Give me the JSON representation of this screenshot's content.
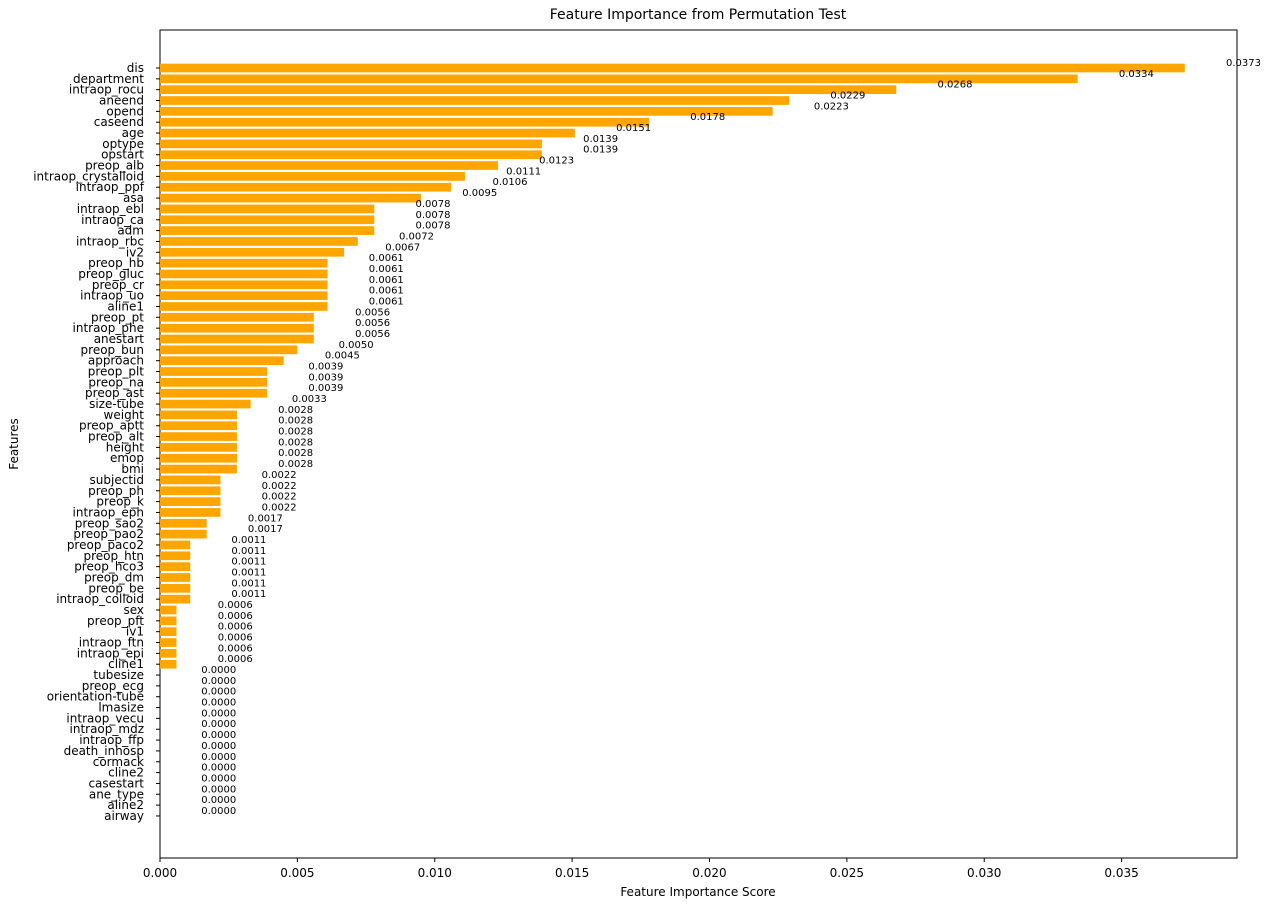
{
  "chart_data": {
    "type": "barh",
    "title": "Feature Importance from Permutation Test",
    "x_label": "Feature Importance Score",
    "y_label": "Features",
    "color": "#ffa500",
    "categories": [
      "dis",
      "department",
      "intraop_rocu",
      "aneend",
      "opend",
      "caseend",
      "age",
      "optype",
      "opstart",
      "preop_alb",
      "intraop_crystalloid",
      "intraop_ppf",
      "asa",
      "intraop_ebl",
      "intraop_ca",
      "adm",
      "intraop_rbc",
      "iv2",
      "preop_hb",
      "preop_gluc",
      "preop_cr",
      "intraop_uo",
      "aline1",
      "preop_pt",
      "intraop_phe",
      "anestart",
      "preop_bun",
      "approach",
      "preop_plt",
      "preop_na",
      "preop_ast",
      "size-tube",
      "weight",
      "preop_aptt",
      "preop_alt",
      "height",
      "emop",
      "bmi",
      "subjectid",
      "preop_ph",
      "preop_k",
      "intraop_eph",
      "preop_sao2",
      "preop_pao2",
      "preop_paco2",
      "preop_htn",
      "preop_hco3",
      "preop_dm",
      "preop_be",
      "intraop_colloid",
      "sex",
      "preop_pft",
      "iv1",
      "intraop_ftn",
      "intraop_epi",
      "cline1",
      "tubesize",
      "preop_ecg",
      "orientation-tube",
      "lmasize",
      "intraop_vecu",
      "intraop_mdz",
      "intraop_ffp",
      "death_inhosp",
      "cormack",
      "cline2",
      "casestart",
      "ane_type",
      "aline2",
      "airway"
    ],
    "values": [
      0.0373,
      0.0334,
      0.0268,
      0.0229,
      0.0223,
      0.0178,
      0.0151,
      0.0139,
      0.0139,
      0.0123,
      0.0111,
      0.0106,
      0.0095,
      0.0078,
      0.0078,
      0.0078,
      0.0072,
      0.0067,
      0.0061,
      0.0061,
      0.0061,
      0.0061,
      0.0061,
      0.0056,
      0.0056,
      0.0056,
      0.005,
      0.0045,
      0.0039,
      0.0039,
      0.0039,
      0.0033,
      0.0028,
      0.0028,
      0.0028,
      0.0028,
      0.0028,
      0.0028,
      0.0022,
      0.0022,
      0.0022,
      0.0022,
      0.0017,
      0.0017,
      0.0011,
      0.0011,
      0.0011,
      0.0011,
      0.0011,
      0.0011,
      0.0006,
      0.0006,
      0.0006,
      0.0006,
      0.0006,
      0.0006,
      0,
      0,
      0,
      0,
      0,
      0,
      0,
      0,
      0,
      0,
      0,
      0,
      0,
      0
    ],
    "value_labels": [
      "0.0373",
      "0.0334",
      "0.0268",
      "0.0229",
      "0.0223",
      "0.0178",
      "0.0151",
      "0.0139",
      "0.0139",
      "0.0123",
      "0.0111",
      "0.0106",
      "0.0095",
      "0.0078",
      "0.0078",
      "0.0078",
      "0.0072",
      "0.0067",
      "0.0061",
      "0.0061",
      "0.0061",
      "0.0061",
      "0.0061",
      "0.0056",
      "0.0056",
      "0.0056",
      "0.0050",
      "0.0045",
      "0.0039",
      "0.0039",
      "0.0039",
      "0.0033",
      "0.0028",
      "0.0028",
      "0.0028",
      "0.0028",
      "0.0028",
      "0.0028",
      "0.0022",
      "0.0022",
      "0.0022",
      "0.0022",
      "0.0017",
      "0.0017",
      "0.0011",
      "0.0011",
      "0.0011",
      "0.0011",
      "0.0011",
      "0.0011",
      "0.0006",
      "0.0006",
      "0.0006",
      "0.0006",
      "0.0006",
      "0.0006",
      "0.0000",
      "0.0000",
      "0.0000",
      "0.0000",
      "0.0000",
      "0.0000",
      "0.0000",
      "0.0000",
      "0.0000",
      "0.0000",
      "0.0000",
      "0.0000",
      "0.0000",
      "0.0000"
    ],
    "xlim": [
      0,
      0.0392
    ],
    "xticks": [
      {
        "value": 0,
        "label": "0.000"
      },
      {
        "value": 0.005,
        "label": "0.005"
      },
      {
        "value": 0.01,
        "label": "0.010"
      },
      {
        "value": 0.015,
        "label": "0.015"
      },
      {
        "value": 0.02,
        "label": "0.020"
      },
      {
        "value": 0.025,
        "label": "0.025"
      },
      {
        "value": 0.03,
        "label": "0.030"
      },
      {
        "value": 0.035,
        "label": "0.035"
      }
    ]
  }
}
